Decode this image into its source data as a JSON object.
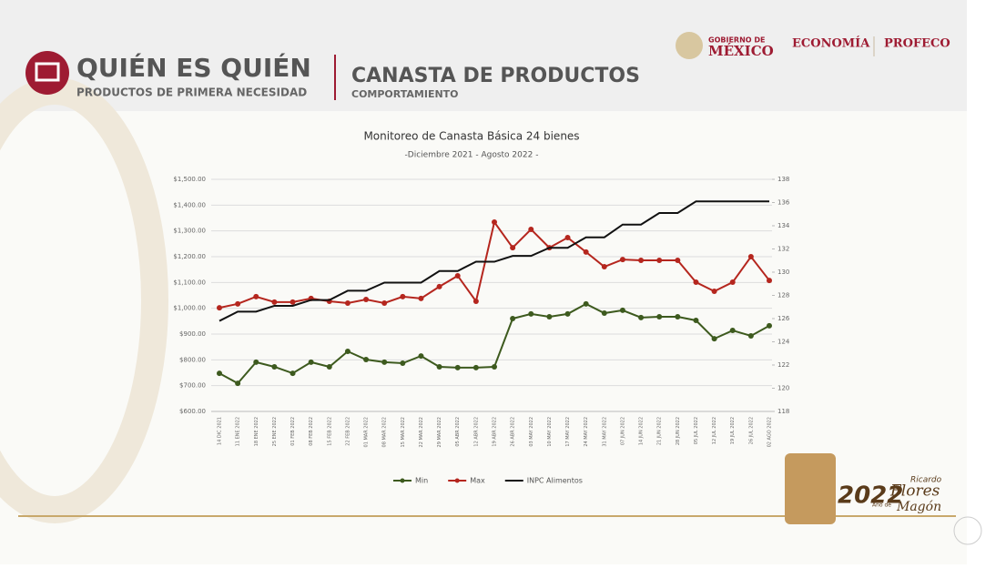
{
  "header": {
    "title": "QUIÉN ES QUIÉN",
    "subtitle": "PRODUCTOS DE PRIMERA NECESIDAD",
    "section": "CANASTA DE PRODUCTOS",
    "section_sub": "COMPORTAMIENTO",
    "gov_top": "GOBIERNO DE",
    "gov": "MÉXICO",
    "economia": "ECONOMÍA",
    "profeco": "PROFECO"
  },
  "footer": {
    "year": "2022",
    "year_sub": "Año de",
    "name_1": "Ricardo",
    "name_2": "Flores",
    "name_3": "Magón"
  },
  "chart_data": {
    "type": "line",
    "title": "Monitoreo de Canasta Básica 24 bienes",
    "subtitle": "-Diciembre 2021 - Agosto 2022 -",
    "categories": [
      "14 DIC 2021",
      "11 ENE 2022",
      "18 ENE 2022",
      "25 ENE 2022",
      "01 FEB 2022",
      "08 FEB 2022",
      "15 FEB 2022",
      "22 FEB 2022",
      "01 MAR 2022",
      "08 MAR 2022",
      "15 MAR 2022",
      "22 MAR 2022",
      "29 MAR 2022",
      "05 ABR 2022",
      "12 ABR 2022",
      "19 ABR 2022",
      "26 ABR 2022",
      "03 MAY 2022",
      "10 MAY 2022",
      "17 MAY 2022",
      "24 MAY 2022",
      "31 MAY 2022",
      "07 JUN 2022",
      "14 JUN 2022",
      "21 JUN 2022",
      "28 JUN 2022",
      "05 JUL 2022",
      "12 JUL 2022",
      "19 JUL 2022",
      "26 JUL 2022",
      "02 AGO 2022"
    ],
    "series": [
      {
        "name": "Min",
        "color": "#3d5a1e",
        "values": [
          748,
          709,
          791,
          773,
          748,
          791,
          773,
          833,
          801,
          791,
          787,
          815,
          773,
          770,
          770,
          773,
          960,
          978,
          967,
          978,
          1017,
          981,
          992,
          964,
          967,
          967,
          953,
          882,
          914,
          893,
          932
        ]
      },
      {
        "name": "Max",
        "color": "#b5261e",
        "values": [
          1002,
          1017,
          1045,
          1024,
          1024,
          1038,
          1027,
          1020,
          1034,
          1020,
          1045,
          1038,
          1084,
          1126,
          1027,
          1334,
          1235,
          1306,
          1235,
          1274,
          1218,
          1161,
          1189,
          1186,
          1186,
          1186,
          1101,
          1066,
          1101,
          1200,
          1108
        ]
      },
      {
        "name": "INPC Alimentos",
        "color": "#111111",
        "axis": "y2",
        "values": [
          125.8,
          126.6,
          126.6,
          127.1,
          127.1,
          127.6,
          127.6,
          128.4,
          128.4,
          129.1,
          129.1,
          129.1,
          130.1,
          130.1,
          130.9,
          130.9,
          131.4,
          131.4,
          132.1,
          132.1,
          133.0,
          133.0,
          134.1,
          134.1,
          135.1,
          135.1,
          136.1,
          136.1,
          136.1,
          136.1,
          136.1
        ]
      }
    ],
    "ylim": [
      600,
      1500
    ],
    "yticks": [
      {
        "value": 600,
        "label": "$600.00"
      },
      {
        "value": 700,
        "label": "$700.00"
      },
      {
        "value": 800,
        "label": "$800.00"
      },
      {
        "value": 900,
        "label": "$900.00"
      },
      {
        "value": 1000,
        "label": "$1,000.00"
      },
      {
        "value": 1100,
        "label": "$1,100.00"
      },
      {
        "value": 1200,
        "label": "$1,200.00"
      },
      {
        "value": 1300,
        "label": "$1,300.00"
      },
      {
        "value": 1400,
        "label": "$1,400.00"
      },
      {
        "value": 1500,
        "label": "$1,500.00"
      }
    ],
    "y2lim": [
      118,
      138
    ],
    "y2ticks": [
      118,
      120,
      122,
      124,
      126,
      128,
      130,
      132,
      134,
      136,
      138
    ],
    "grid": true,
    "legend": "bottom"
  }
}
